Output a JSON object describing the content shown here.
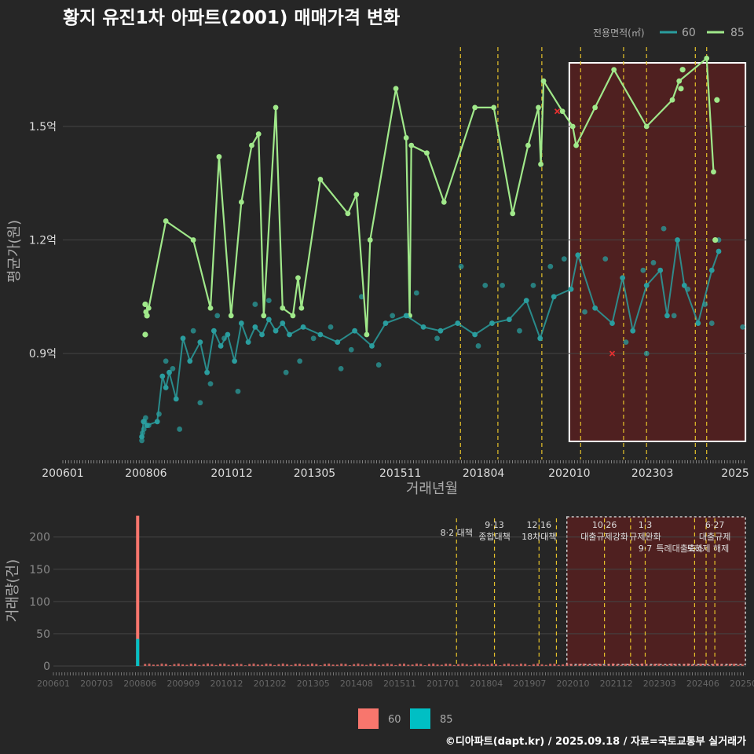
{
  "title": "황지 유진1차 아파트(2001) 매매가격 변화",
  "legend": {
    "label": "전용면적(㎡)",
    "items": [
      "60",
      "85"
    ]
  },
  "colors": {
    "s60": "#2a9d9e",
    "s85": "#a0e88a",
    "bar60": "#f8766d",
    "bar85": "#00bfc4",
    "policy": "#e6c22a",
    "highlight": "#5a1f1f",
    "grid": "#444444",
    "text": "#bbbbbb",
    "title": "#ffffff"
  },
  "chart_data": [
    {
      "type": "line",
      "title": "황지 유진1차 아파트(2001) 매매가격 변화",
      "xlabel": "거래년월",
      "ylabel": "평균가(원)",
      "xlim": [
        2006.0,
        2025.9
      ],
      "ylim": [
        0.62,
        1.72
      ],
      "yunit": "억",
      "yticks": [
        {
          "v": 0.9,
          "label": "0.9억"
        },
        {
          "v": 1.2,
          "label": "1.2억"
        },
        {
          "v": 1.5,
          "label": "1.5억"
        }
      ],
      "xticks": [
        {
          "v": 2006.0,
          "label": "200601"
        },
        {
          "v": 2008.42,
          "label": "200806"
        },
        {
          "v": 2010.92,
          "label": "201012"
        },
        {
          "v": 2013.33,
          "label": "201305"
        },
        {
          "v": 2015.83,
          "label": "201511"
        },
        {
          "v": 2018.25,
          "label": "201804"
        },
        {
          "v": 2020.75,
          "label": "202010"
        },
        {
          "v": 2023.17,
          "label": "202303"
        },
        {
          "v": 2025.58,
          "label": "2025"
        }
      ],
      "policy_lines": [
        2017.58,
        2018.67,
        2019.95,
        2021.08,
        2022.33,
        2023.0,
        2024.42,
        2024.75
      ],
      "highlight_range": [
        2020.75,
        2025.88
      ],
      "series": [
        {
          "name": "85",
          "points": [
            [
              2008.42,
              1.01
            ],
            [
              2008.5,
              1.02
            ],
            [
              2009.0,
              1.25
            ],
            [
              2009.8,
              1.2
            ],
            [
              2010.3,
              1.02
            ],
            [
              2010.55,
              1.42
            ],
            [
              2010.9,
              1.0
            ],
            [
              2011.2,
              1.3
            ],
            [
              2011.5,
              1.45
            ],
            [
              2011.7,
              1.48
            ],
            [
              2011.85,
              1.0
            ],
            [
              2012.2,
              1.55
            ],
            [
              2012.4,
              1.02
            ],
            [
              2012.7,
              1.0
            ],
            [
              2012.85,
              1.1
            ],
            [
              2012.95,
              1.02
            ],
            [
              2013.5,
              1.36
            ],
            [
              2014.3,
              1.27
            ],
            [
              2014.55,
              1.32
            ],
            [
              2014.85,
              0.95
            ],
            [
              2014.95,
              1.2
            ],
            [
              2015.7,
              1.6
            ],
            [
              2016.0,
              1.47
            ],
            [
              2016.1,
              1.0
            ],
            [
              2016.15,
              1.45
            ],
            [
              2016.6,
              1.43
            ],
            [
              2017.1,
              1.3
            ],
            [
              2018.0,
              1.55
            ],
            [
              2018.55,
              1.55
            ],
            [
              2019.1,
              1.27
            ],
            [
              2019.55,
              1.45
            ],
            [
              2019.85,
              1.55
            ],
            [
              2019.92,
              1.4
            ],
            [
              2020.0,
              1.62
            ],
            [
              2020.55,
              1.54
            ],
            [
              2020.85,
              1.5
            ],
            [
              2020.95,
              1.45
            ],
            [
              2021.5,
              1.55
            ],
            [
              2022.05,
              1.65
            ],
            [
              2023.0,
              1.5
            ],
            [
              2023.75,
              1.57
            ],
            [
              2023.95,
              1.62
            ],
            [
              2024.75,
              1.68
            ],
            [
              2024.95,
              1.38
            ]
          ]
        },
        {
          "name": "60",
          "points": [
            [
              2008.3,
              0.68
            ],
            [
              2008.35,
              0.72
            ],
            [
              2008.45,
              0.71
            ],
            [
              2008.75,
              0.72
            ],
            [
              2008.9,
              0.84
            ],
            [
              2009.0,
              0.81
            ],
            [
              2009.1,
              0.85
            ],
            [
              2009.3,
              0.78
            ],
            [
              2009.5,
              0.94
            ],
            [
              2009.7,
              0.88
            ],
            [
              2010.0,
              0.93
            ],
            [
              2010.2,
              0.85
            ],
            [
              2010.4,
              0.96
            ],
            [
              2010.6,
              0.92
            ],
            [
              2010.8,
              0.95
            ],
            [
              2011.0,
              0.88
            ],
            [
              2011.2,
              0.98
            ],
            [
              2011.4,
              0.93
            ],
            [
              2011.6,
              0.97
            ],
            [
              2011.8,
              0.95
            ],
            [
              2012.0,
              0.99
            ],
            [
              2012.2,
              0.96
            ],
            [
              2012.4,
              0.98
            ],
            [
              2012.6,
              0.95
            ],
            [
              2013.0,
              0.97
            ],
            [
              2013.5,
              0.95
            ],
            [
              2014.0,
              0.93
            ],
            [
              2014.5,
              0.96
            ],
            [
              2015.0,
              0.92
            ],
            [
              2015.4,
              0.98
            ],
            [
              2016.0,
              1.0
            ],
            [
              2016.5,
              0.97
            ],
            [
              2017.0,
              0.96
            ],
            [
              2017.5,
              0.98
            ],
            [
              2018.0,
              0.95
            ],
            [
              2018.5,
              0.98
            ],
            [
              2019.0,
              0.99
            ],
            [
              2019.5,
              1.04
            ],
            [
              2019.9,
              0.94
            ],
            [
              2020.3,
              1.05
            ],
            [
              2020.8,
              1.07
            ],
            [
              2021.0,
              1.16
            ],
            [
              2021.5,
              1.02
            ],
            [
              2022.0,
              0.98
            ],
            [
              2022.3,
              1.1
            ],
            [
              2022.6,
              0.96
            ],
            [
              2023.0,
              1.08
            ],
            [
              2023.4,
              1.12
            ],
            [
              2023.6,
              1.0
            ],
            [
              2023.9,
              1.2
            ],
            [
              2024.1,
              1.08
            ],
            [
              2024.5,
              0.98
            ],
            [
              2024.9,
              1.12
            ],
            [
              2025.1,
              1.17
            ]
          ]
        }
      ],
      "scatter_60": [
        [
          2008.3,
          0.67
        ],
        [
          2008.32,
          0.69
        ],
        [
          2008.36,
          0.7
        ],
        [
          2008.38,
          0.72
        ],
        [
          2008.41,
          0.73
        ],
        [
          2008.5,
          0.71
        ],
        [
          2008.8,
          0.74
        ],
        [
          2009.0,
          0.88
        ],
        [
          2009.2,
          0.86
        ],
        [
          2009.4,
          0.7
        ],
        [
          2009.8,
          0.96
        ],
        [
          2010.0,
          0.77
        ],
        [
          2010.3,
          0.82
        ],
        [
          2010.5,
          1.0
        ],
        [
          2010.7,
          0.94
        ],
        [
          2011.1,
          0.8
        ],
        [
          2011.6,
          1.03
        ],
        [
          2012.0,
          1.04
        ],
        [
          2012.5,
          0.85
        ],
        [
          2012.9,
          0.88
        ],
        [
          2013.3,
          0.94
        ],
        [
          2013.8,
          0.97
        ],
        [
          2014.1,
          0.86
        ],
        [
          2014.4,
          0.91
        ],
        [
          2014.7,
          1.05
        ],
        [
          2015.2,
          0.87
        ],
        [
          2015.6,
          1.0
        ],
        [
          2016.3,
          1.06
        ],
        [
          2016.9,
          0.94
        ],
        [
          2017.6,
          1.13
        ],
        [
          2018.1,
          0.92
        ],
        [
          2018.3,
          1.08
        ],
        [
          2018.8,
          1.08
        ],
        [
          2019.3,
          0.96
        ],
        [
          2019.7,
          1.08
        ],
        [
          2020.2,
          1.13
        ],
        [
          2020.6,
          1.15
        ],
        [
          2021.2,
          1.01
        ],
        [
          2021.8,
          1.15
        ],
        [
          2022.4,
          0.93
        ],
        [
          2022.9,
          1.12
        ],
        [
          2023.0,
          0.9
        ],
        [
          2023.2,
          1.14
        ],
        [
          2023.5,
          1.23
        ],
        [
          2023.8,
          1.0
        ],
        [
          2024.2,
          1.07
        ],
        [
          2024.7,
          1.03
        ],
        [
          2024.9,
          0.98
        ],
        [
          2025.1,
          1.2
        ],
        [
          2025.8,
          0.97
        ]
      ],
      "scatter_85": [
        [
          2008.4,
          1.03
        ],
        [
          2008.4,
          0.95
        ],
        [
          2008.45,
          1.0
        ],
        [
          2024.0,
          1.6
        ],
        [
          2024.05,
          1.65
        ],
        [
          2025.0,
          1.2
        ],
        [
          2025.05,
          1.57
        ]
      ],
      "markers_x": [
        [
          2020.4,
          1.54
        ],
        [
          2022.0,
          0.9
        ]
      ]
    },
    {
      "type": "bar",
      "xlabel": "",
      "ylabel": "거래량(건)",
      "ylim": [
        0,
        235
      ],
      "yticks": [
        0,
        50,
        100,
        150,
        200
      ],
      "xticks": [
        "200601",
        "200703",
        "200806",
        "200909",
        "201012",
        "201202",
        "201305",
        "201408",
        "201511",
        "201701",
        "201804",
        "201907",
        "202010",
        "202112",
        "202303",
        "202406",
        "202509"
      ],
      "series": [
        {
          "name": "60",
          "peak": {
            "x": 2008.42,
            "value": 233
          }
        },
        {
          "name": "85",
          "peak": {
            "x": 2008.42,
            "value": 42
          }
        }
      ],
      "annotations": [
        {
          "x": 2017.58,
          "lines": [
            "8·2 대책"
          ]
        },
        {
          "x": 2018.67,
          "lines": [
            "9·13",
            "종합대책"
          ]
        },
        {
          "x": 2019.95,
          "lines": [
            "12·16",
            "18차대책"
          ]
        },
        {
          "x": 2021.83,
          "lines": [
            "10·26",
            "대출규제강화"
          ]
        },
        {
          "x": 2023.0,
          "lines": [
            "1·3",
            "규제완화"
          ]
        },
        {
          "x": 2023.0,
          "lines": [
            "",
            "",
            "9·7"
          ]
        },
        {
          "x": 2024.0,
          "lines": [
            "",
            "",
            "특례대출축소"
          ]
        },
        {
          "x": 2024.8,
          "lines": [
            "",
            "",
            "토허제 해제"
          ]
        },
        {
          "x": 2025.0,
          "lines": [
            "6·27",
            "대출규제"
          ]
        }
      ],
      "policy_lines": [
        2017.58,
        2018.67,
        2019.95,
        2020.45,
        2021.83,
        2022.58,
        2023.0,
        2024.42,
        2024.75,
        2025.0
      ]
    }
  ],
  "footer": {
    "legend_60": "60",
    "legend_85": "85",
    "credit": "©디아파트(dapt.kr) / 2025.09.18 / 자료=국토교통부 실거래가"
  }
}
